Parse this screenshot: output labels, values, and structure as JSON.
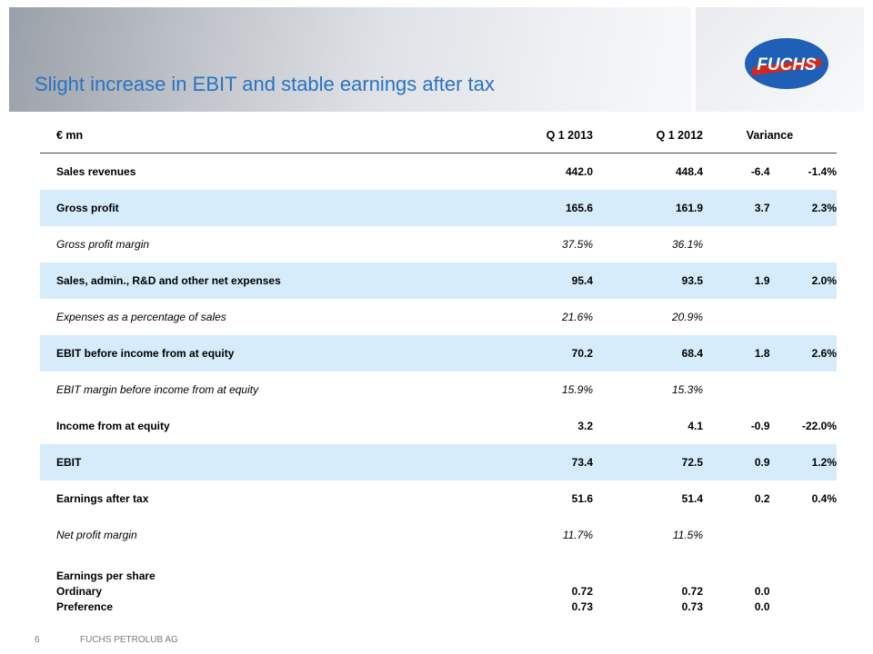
{
  "slide": {
    "title": "Slight increase in EBIT and stable earnings after tax",
    "brand": "FUCHS",
    "page_number": "6",
    "footer_company": "FUCHS PETROLUB AG"
  },
  "table": {
    "headers": {
      "label": "€ mn",
      "q1_2013": "Q 1 2013",
      "q1_2012": "Q 1 2012",
      "variance": "Variance"
    },
    "rows": [
      {
        "label": "Sales revenues",
        "q1_2013": "442.0",
        "q1_2012": "448.4",
        "var_abs": "-6.4",
        "var_pct": "-1.4%"
      },
      {
        "label": "Gross profit",
        "q1_2013": "165.6",
        "q1_2012": "161.9",
        "var_abs": "3.7",
        "var_pct": "2.3%"
      },
      {
        "label": "Gross profit margin",
        "q1_2013": "37.5%",
        "q1_2012": "36.1%",
        "var_abs": "",
        "var_pct": ""
      },
      {
        "label": "Sales, admin., R&D and other net expenses",
        "q1_2013": "95.4",
        "q1_2012": "93.5",
        "var_abs": "1.9",
        "var_pct": "2.0%"
      },
      {
        "label": "Expenses as a percentage of sales",
        "q1_2013": "21.6%",
        "q1_2012": "20.9%",
        "var_abs": "",
        "var_pct": ""
      },
      {
        "label": "EBIT before income from at equity",
        "q1_2013": "70.2",
        "q1_2012": "68.4",
        "var_abs": "1.8",
        "var_pct": "2.6%"
      },
      {
        "label": "EBIT margin before income from at equity",
        "q1_2013": "15.9%",
        "q1_2012": "15.3%",
        "var_abs": "",
        "var_pct": ""
      },
      {
        "label": "Income from at equity",
        "q1_2013": "3.2",
        "q1_2012": "4.1",
        "var_abs": "-0.9",
        "var_pct": "-22.0%"
      },
      {
        "label": "EBIT",
        "q1_2013": "73.4",
        "q1_2012": "72.5",
        "var_abs": "0.9",
        "var_pct": "1.2%"
      },
      {
        "label": "Earnings after tax",
        "q1_2013": "51.6",
        "q1_2012": "51.4",
        "var_abs": "0.2",
        "var_pct": "0.4%"
      },
      {
        "label": "Net profit margin",
        "q1_2013": "11.7%",
        "q1_2012": "11.5%",
        "var_abs": "",
        "var_pct": ""
      }
    ],
    "eps": {
      "label": "Earnings per share",
      "ordinary": {
        "label": "Ordinary",
        "q1_2013": "0.72",
        "q1_2012": "0.72",
        "var_abs": "0.0"
      },
      "preference": {
        "label": "Preference",
        "q1_2013": "0.73",
        "q1_2012": "0.73",
        "var_abs": "0.0"
      }
    }
  },
  "colors": {
    "title": "#2a73c0",
    "highlight_row": "#d6ecfb",
    "logo_blue": "#1f5fb5",
    "logo_red": "#d7261e"
  }
}
